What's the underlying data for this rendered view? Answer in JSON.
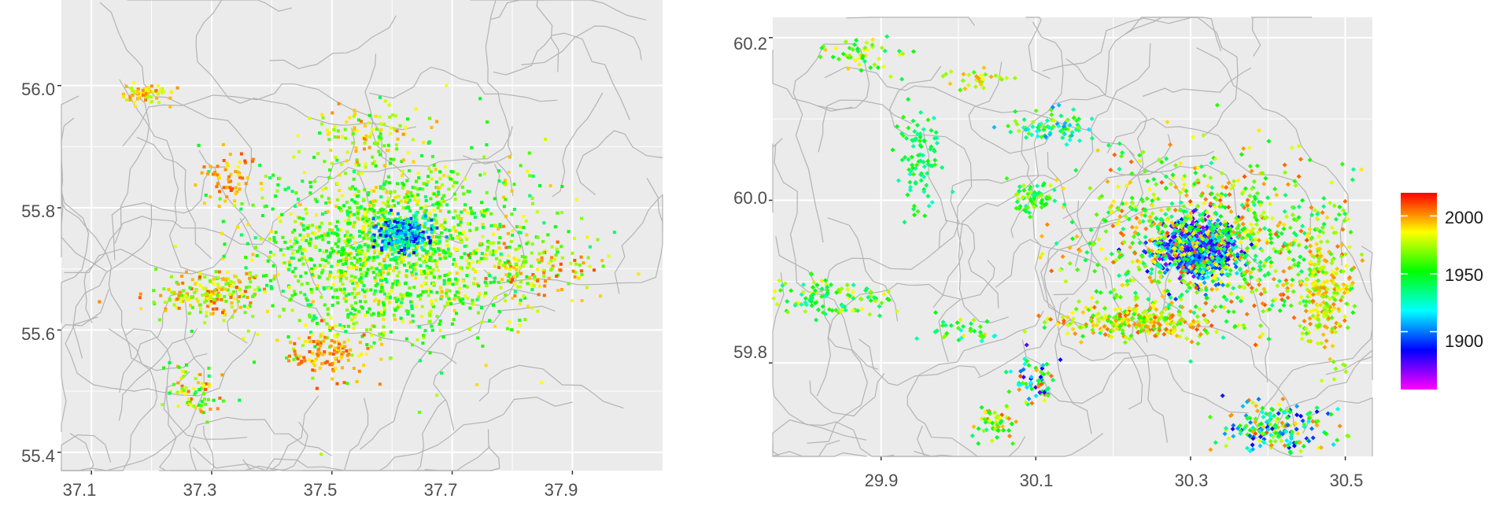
{
  "chart_data": [
    {
      "type": "scatter",
      "xlim": [
        37.05,
        38.05
      ],
      "ylim": [
        55.37,
        56.14
      ],
      "x_ticks": [
        37.1,
        37.3,
        37.5,
        37.7,
        37.9
      ],
      "y_ticks": [
        55.4,
        55.6,
        55.8,
        56.0
      ],
      "x_tick_labels": [
        "37.1",
        "37.3",
        "37.5",
        "37.7",
        "37.9"
      ],
      "y_tick_labels": [
        "55.4",
        "55.6",
        "55.8",
        "56.0"
      ],
      "grid": true,
      "color_encoding": "year",
      "clusters": [
        {
          "x": 37.6,
          "y": 55.73,
          "rx": 0.23,
          "ry": 0.15,
          "n": 1600,
          "year_range": [
            1935,
            1995
          ]
        },
        {
          "x": 37.62,
          "y": 55.755,
          "rx": 0.045,
          "ry": 0.03,
          "n": 260,
          "year_range": [
            1880,
            1940
          ]
        },
        {
          "x": 37.19,
          "y": 55.985,
          "rx": 0.04,
          "ry": 0.016,
          "n": 70,
          "year_range": [
            1975,
            2005
          ]
        },
        {
          "x": 37.3,
          "y": 55.66,
          "rx": 0.1,
          "ry": 0.035,
          "n": 200,
          "year_range": [
            1960,
            2010
          ]
        },
        {
          "x": 37.27,
          "y": 55.5,
          "rx": 0.05,
          "ry": 0.04,
          "n": 70,
          "year_range": [
            1940,
            2010
          ]
        },
        {
          "x": 37.49,
          "y": 55.56,
          "rx": 0.06,
          "ry": 0.04,
          "n": 110,
          "year_range": [
            1985,
            2010
          ]
        },
        {
          "x": 37.84,
          "y": 55.7,
          "rx": 0.12,
          "ry": 0.05,
          "n": 120,
          "year_range": [
            1960,
            2010
          ]
        },
        {
          "x": 37.33,
          "y": 55.85,
          "rx": 0.04,
          "ry": 0.04,
          "n": 60,
          "year_range": [
            1985,
            2010
          ]
        },
        {
          "x": 37.55,
          "y": 55.92,
          "rx": 0.08,
          "ry": 0.05,
          "n": 80,
          "year_range": [
            1960,
            2005
          ]
        }
      ]
    },
    {
      "type": "scatter",
      "xlim": [
        29.76,
        30.535
      ],
      "ylim": [
        59.685,
        60.225
      ],
      "x_ticks": [
        29.9,
        30.1,
        30.3,
        30.5
      ],
      "y_ticks": [
        59.8,
        60.0,
        60.2
      ],
      "x_tick_labels": [
        "29.9",
        "30.1",
        "30.3",
        "30.5"
      ],
      "y_tick_labels": [
        "59.8",
        "60.0",
        "60.2"
      ],
      "grid": true,
      "color_encoding": "year",
      "clusters": [
        {
          "x": 30.31,
          "y": 59.94,
          "rx": 0.05,
          "ry": 0.035,
          "n": 700,
          "year_range": [
            1860,
            1925
          ]
        },
        {
          "x": 30.33,
          "y": 59.95,
          "rx": 0.18,
          "ry": 0.1,
          "n": 900,
          "year_range": [
            1930,
            2010
          ]
        },
        {
          "x": 30.23,
          "y": 59.85,
          "rx": 0.1,
          "ry": 0.02,
          "n": 260,
          "year_range": [
            1955,
            2010
          ]
        },
        {
          "x": 30.47,
          "y": 59.89,
          "rx": 0.03,
          "ry": 0.08,
          "n": 220,
          "year_range": [
            1960,
            2005
          ]
        },
        {
          "x": 30.41,
          "y": 59.72,
          "rx": 0.07,
          "ry": 0.03,
          "n": 200,
          "year_range": [
            1880,
            2010
          ]
        },
        {
          "x": 29.95,
          "y": 60.06,
          "rx": 0.03,
          "ry": 0.07,
          "n": 90,
          "year_range": [
            1925,
            1960
          ]
        },
        {
          "x": 29.84,
          "y": 59.88,
          "rx": 0.08,
          "ry": 0.025,
          "n": 110,
          "year_range": [
            1925,
            1990
          ]
        },
        {
          "x": 30.1,
          "y": 60.0,
          "rx": 0.03,
          "ry": 0.02,
          "n": 60,
          "year_range": [
            1930,
            1980
          ]
        },
        {
          "x": 30.12,
          "y": 60.09,
          "rx": 0.05,
          "ry": 0.02,
          "n": 80,
          "year_range": [
            1900,
            1980
          ]
        },
        {
          "x": 30.1,
          "y": 59.78,
          "rx": 0.03,
          "ry": 0.03,
          "n": 60,
          "year_range": [
            1870,
            2010
          ]
        },
        {
          "x": 30.05,
          "y": 59.725,
          "rx": 0.03,
          "ry": 0.02,
          "n": 50,
          "year_range": [
            1930,
            2010
          ]
        },
        {
          "x": 29.88,
          "y": 60.18,
          "rx": 0.06,
          "ry": 0.025,
          "n": 50,
          "year_range": [
            1935,
            1995
          ]
        },
        {
          "x": 30.02,
          "y": 60.15,
          "rx": 0.04,
          "ry": 0.015,
          "n": 30,
          "year_range": [
            1960,
            2000
          ]
        },
        {
          "x": 30.0,
          "y": 59.84,
          "rx": 0.05,
          "ry": 0.015,
          "n": 40,
          "year_range": [
            1920,
            1995
          ]
        }
      ]
    }
  ],
  "legend": {
    "min": 1850,
    "max": 2020,
    "ticks": [
      1900,
      1950,
      2000
    ],
    "tick_labels": [
      "1900",
      "1950",
      "2000"
    ],
    "colors": [
      "#ff00ff",
      "#0000ff",
      "#00ffff",
      "#00ff00",
      "#ffff00",
      "#ff0000"
    ]
  }
}
